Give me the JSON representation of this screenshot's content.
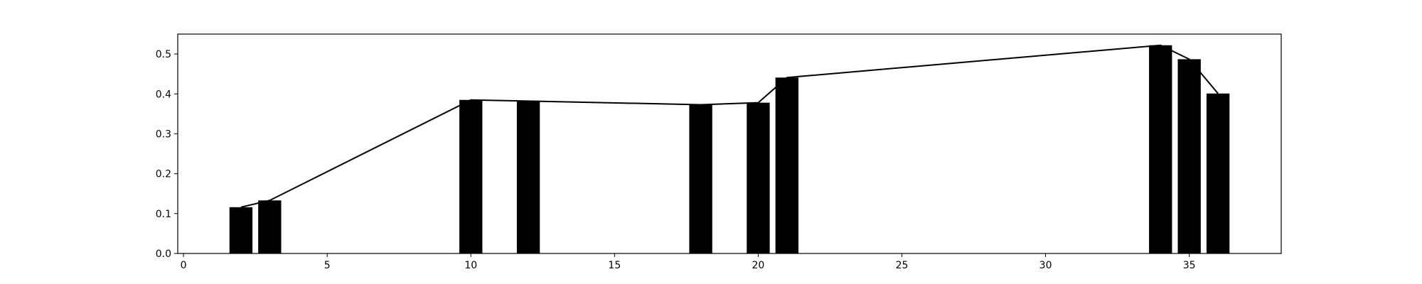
{
  "chart_data": {
    "type": "bar",
    "title": "",
    "xlabel": "",
    "ylabel": "",
    "xlim": [
      -0.2,
      38.2
    ],
    "ylim": [
      0,
      0.55
    ],
    "grid": false,
    "legend": null,
    "x_ticks": [
      0,
      5,
      10,
      15,
      20,
      25,
      30,
      35
    ],
    "x_tick_labels": [
      "0",
      "5",
      "10",
      "15",
      "20",
      "25",
      "30",
      "35"
    ],
    "y_ticks": [
      0.0,
      0.1,
      0.2,
      0.3,
      0.4,
      0.5
    ],
    "y_tick_labels": [
      "0.0",
      "0.1",
      "0.2",
      "0.3",
      "0.4",
      "0.5"
    ],
    "bar_width": 0.8,
    "series": [
      {
        "kind": "bar",
        "color": "#000000",
        "x": [
          2,
          3,
          10,
          12,
          18,
          20,
          21,
          34,
          35,
          36
        ],
        "values": [
          0.116,
          0.133,
          0.385,
          0.382,
          0.373,
          0.378,
          0.441,
          0.522,
          0.487,
          0.401
        ]
      },
      {
        "kind": "line",
        "color": "#000000",
        "x": [
          2,
          3,
          10,
          12,
          18,
          20,
          21,
          34,
          35,
          36
        ],
        "values": [
          0.116,
          0.133,
          0.385,
          0.382,
          0.373,
          0.378,
          0.441,
          0.522,
          0.487,
          0.401
        ]
      }
    ]
  }
}
